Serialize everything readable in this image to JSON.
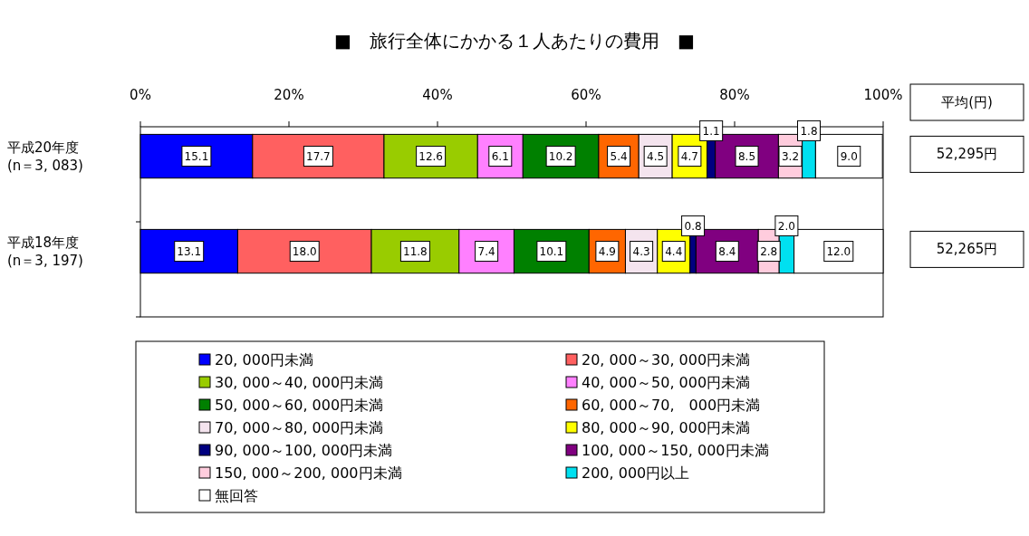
{
  "chart_data": {
    "type": "bar",
    "orientation": "horizontal",
    "stacked": true,
    "title": "■　旅行全体にかかる１人あたりの費用　■",
    "categories": [
      "平成20年度\n(n＝3, 083)",
      "平成18年度\n(n＝3, 197)"
    ],
    "xlim": [
      0,
      100
    ],
    "xticks": [
      {
        "value": 0,
        "label": "0%"
      },
      {
        "value": 20,
        "label": "20%"
      },
      {
        "value": 40,
        "label": "40%"
      },
      {
        "value": 60,
        "label": "60%"
      },
      {
        "value": 80,
        "label": "80%"
      },
      {
        "value": 100,
        "label": "100%"
      }
    ],
    "series": [
      {
        "name": "20, 000円未満",
        "color": "#0000ff",
        "values": [
          15.1,
          13.1
        ],
        "value_labels": [
          "15.1",
          "13.1"
        ]
      },
      {
        "name": "20, 000～30, 000円未満",
        "color": "#ff6060",
        "values": [
          17.7,
          18.0
        ],
        "value_labels": [
          "17.7",
          "18.0"
        ]
      },
      {
        "name": "30, 000～40, 000円未満",
        "color": "#99cc00",
        "values": [
          12.6,
          11.8
        ],
        "value_labels": [
          "12.6",
          "11.8"
        ]
      },
      {
        "name": "40, 000～50, 000円未満",
        "color": "#ff80ff",
        "values": [
          6.1,
          7.4
        ],
        "value_labels": [
          "6.1",
          "7.4"
        ]
      },
      {
        "name": "50, 000～60, 000円未満",
        "color": "#008000",
        "values": [
          10.2,
          10.1
        ],
        "value_labels": [
          "10.2",
          "10.1"
        ]
      },
      {
        "name": "60, 000～70,　000円未満",
        "color": "#ff6600",
        "values": [
          5.4,
          4.9
        ],
        "value_labels": [
          "5.4",
          "4.9"
        ]
      },
      {
        "name": "70, 000～80, 000円未満",
        "color": "#f4e4ee",
        "values": [
          4.5,
          4.3
        ],
        "value_labels": [
          "4.5",
          "4.3"
        ]
      },
      {
        "name": "80, 000～90, 000円未満",
        "color": "#ffff00",
        "values": [
          4.7,
          4.4
        ],
        "value_labels": [
          "4.7",
          "4.4"
        ]
      },
      {
        "name": "90, 000～100, 000円未満",
        "color": "#000080",
        "values": [
          1.1,
          0.8
        ],
        "value_labels": [
          "1.1",
          "0.8"
        ]
      },
      {
        "name": "100, 000～150, 000円未満",
        "color": "#800080",
        "values": [
          8.5,
          8.4
        ],
        "value_labels": [
          "8.5",
          "8.4"
        ]
      },
      {
        "name": "150, 000～200, 000円未満",
        "color": "#ffccdd",
        "values": [
          3.2,
          2.8
        ],
        "value_labels": [
          "3.2",
          "2.8"
        ]
      },
      {
        "name": "200, 000円以上",
        "color": "#00e0f0",
        "values": [
          1.8,
          2.0
        ],
        "value_labels": [
          "1.8",
          "2.0"
        ]
      },
      {
        "name": "無回答",
        "color": "#ffffff",
        "values": [
          9.0,
          12.0
        ],
        "value_labels": [
          "9.0",
          "12.0"
        ]
      }
    ],
    "legend": "bottom",
    "annotations": [
      "平均(円)",
      "52,295円",
      "52,265円"
    ]
  }
}
